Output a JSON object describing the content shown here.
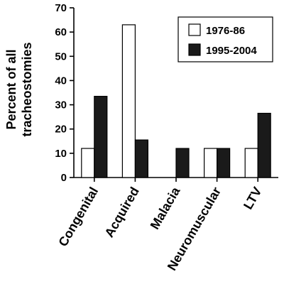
{
  "chart_data": {
    "type": "bar",
    "categories": [
      "Congenital",
      "Acquired",
      "Malacia",
      "Neuromuscular",
      "LTV"
    ],
    "series": [
      {
        "name": "1976-86",
        "values": [
          12,
          63,
          0,
          12,
          12
        ],
        "color": "#ffffff"
      },
      {
        "name": "1995-2004",
        "values": [
          33.5,
          15.5,
          12,
          12,
          26.5
        ],
        "color": "#1a1a1a"
      }
    ],
    "ylabel_lines": [
      "Percent of all",
      "tracheostomies"
    ],
    "ylim": [
      0,
      70
    ],
    "yticks": [
      "0",
      "10",
      "20",
      "30",
      "40",
      "50",
      "60",
      "70"
    ],
    "grid": false,
    "legend_position": "top-right"
  }
}
